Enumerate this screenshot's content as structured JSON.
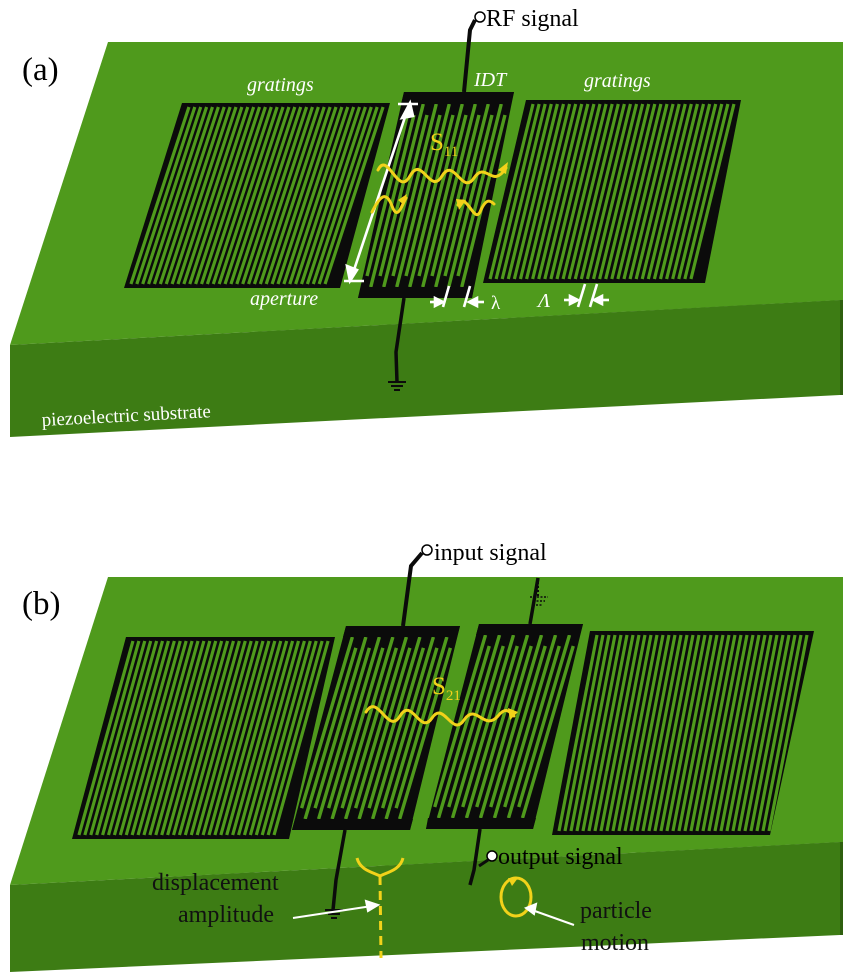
{
  "panel_a": {
    "label": "(a)",
    "rf_signal": "RF signal",
    "grating_left": "gratings",
    "grating_right": "gratings",
    "idt": "IDT",
    "s_param_main": "S",
    "s_param_sub": "11",
    "aperture": "aperture",
    "lambda": "λ",
    "Lambda": "Λ",
    "substrate": "piezoelectric substrate"
  },
  "panel_b": {
    "label": "(b)",
    "input_signal": "input signal",
    "output_signal": "output signal",
    "s_param_main": "S",
    "s_param_sub": "21",
    "displacement_line1": "displacement",
    "displacement_line2": "amplitude",
    "particle_line1": "particle",
    "particle_line2": "motion"
  },
  "colors": {
    "substrate_top": "#4f9a1c",
    "substrate_front": "#3a7612",
    "substrate_side": "#2e5f0e",
    "metal": "#0b0b0b",
    "wave": "#f2d21a",
    "annotation": "#ffffff"
  }
}
